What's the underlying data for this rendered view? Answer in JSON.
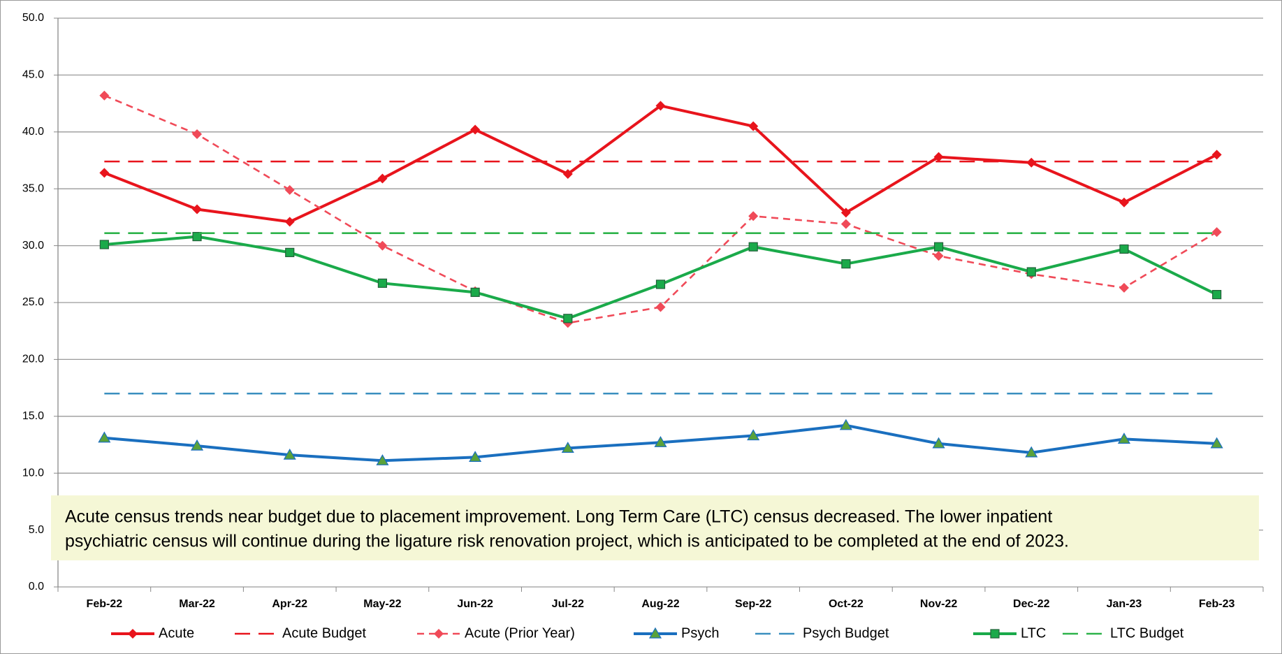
{
  "chart_data": {
    "type": "line",
    "categories": [
      "Feb-22",
      "Mar-22",
      "Apr-22",
      "May-22",
      "Jun-22",
      "Jul-22",
      "Aug-22",
      "Sep-22",
      "Oct-22",
      "Nov-22",
      "Dec-22",
      "Jan-23",
      "Feb-23"
    ],
    "series": [
      {
        "name": "Acute",
        "color": "#e8141c",
        "dashed": false,
        "marker": "diamond",
        "values": [
          36.4,
          33.2,
          32.1,
          35.9,
          40.2,
          36.3,
          42.3,
          40.5,
          32.9,
          37.8,
          37.3,
          33.8,
          38.0
        ]
      },
      {
        "name": "Acute Budget",
        "color": "#e8141c",
        "dashed": true,
        "marker": null,
        "values": [
          37.4,
          37.4,
          37.4,
          37.4,
          37.4,
          37.4,
          37.4,
          37.4,
          37.4,
          37.4,
          37.4,
          37.4,
          37.4
        ]
      },
      {
        "name": "Acute (Prior Year)",
        "color": "#f04a58",
        "dashed": true,
        "marker": "diamond",
        "values": [
          43.2,
          39.8,
          34.9,
          30.0,
          26.0,
          23.2,
          24.6,
          32.6,
          31.9,
          29.1,
          27.5,
          26.3,
          31.2
        ]
      },
      {
        "name": "Psych",
        "color": "#1a6fbf",
        "dashed": false,
        "marker": "triangle",
        "values": [
          13.1,
          12.4,
          11.6,
          11.1,
          11.4,
          12.2,
          12.7,
          13.3,
          14.2,
          12.6,
          11.8,
          13.0,
          12.6
        ]
      },
      {
        "name": "Psych Budget",
        "color": "#3a8fbf",
        "dashed": true,
        "marker": null,
        "values": [
          17.0,
          17.0,
          17.0,
          17.0,
          17.0,
          17.0,
          17.0,
          17.0,
          17.0,
          17.0,
          17.0,
          17.0,
          17.0
        ]
      },
      {
        "name": "LTC",
        "color": "#1aaa4a",
        "dashed": false,
        "marker": "square",
        "values": [
          30.1,
          30.8,
          29.4,
          26.7,
          25.9,
          23.6,
          26.6,
          29.9,
          28.4,
          29.9,
          27.7,
          29.7,
          25.7
        ]
      },
      {
        "name": "LTC Budget",
        "color": "#2db34a",
        "dashed": true,
        "marker": null,
        "values": [
          31.1,
          31.1,
          31.1,
          31.1,
          31.1,
          31.1,
          31.1,
          31.1,
          31.1,
          31.1,
          31.1,
          31.1,
          31.1
        ]
      }
    ],
    "ylim": [
      0,
      50
    ],
    "yticks": [
      {
        "value": 0,
        "label": "0.0"
      },
      {
        "value": 5,
        "label": "5.0"
      },
      {
        "value": 10,
        "label": "10.0"
      },
      {
        "value": 15,
        "label": "15.0"
      },
      {
        "value": 20,
        "label": "20.0"
      },
      {
        "value": 25,
        "label": "25.0"
      },
      {
        "value": 30,
        "label": "30.0"
      },
      {
        "value": 35,
        "label": "35.0"
      },
      {
        "value": 40,
        "label": "40.0"
      },
      {
        "value": 45,
        "label": "45.0"
      },
      {
        "value": 50,
        "label": "50.0"
      }
    ],
    "grid": true,
    "legend": "bottom",
    "annotation": [
      "Acute census trends near budget due to placement improvement.  Long Term Care (LTC) census decreased. The lower inpatient",
      "psychiatric census will continue during the ligature risk renovation project, which is anticipated to be completed at the end of 2023."
    ]
  }
}
